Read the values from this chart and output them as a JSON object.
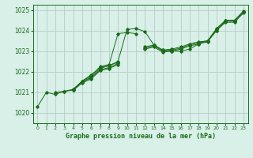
{
  "title": "Graphe pression niveau de la mer (hPa)",
  "background_color": "#d8f0e8",
  "grid_color": "#b8ccc8",
  "line_color": "#1a6b1a",
  "xlim": [
    -0.5,
    23.5
  ],
  "ylim": [
    1019.5,
    1025.25
  ],
  "yticks": [
    1020,
    1021,
    1022,
    1023,
    1024,
    1025
  ],
  "xticks": [
    0,
    1,
    2,
    3,
    4,
    5,
    6,
    7,
    8,
    9,
    10,
    11,
    12,
    13,
    14,
    15,
    16,
    17,
    18,
    19,
    20,
    21,
    22,
    23
  ],
  "series": [
    [
      1020.3,
      1021.0,
      1020.9,
      1021.05,
      1021.1,
      1021.55,
      1021.85,
      1022.2,
      1022.3,
      1022.5,
      1024.05,
      1024.1,
      1023.95,
      1023.3,
      1023.05,
      1023.0,
      1023.0,
      1023.1,
      1023.35,
      1023.5,
      1024.0,
      1024.5,
      1024.45,
      1024.9
    ],
    [
      null,
      null,
      1021.0,
      1021.05,
      1021.15,
      1021.55,
      1021.8,
      1022.25,
      1022.35,
      1023.85,
      1023.9,
      1023.85,
      null,
      null,
      null,
      null,
      null,
      null,
      null,
      null,
      null,
      null,
      null,
      null
    ],
    [
      null,
      null,
      null,
      null,
      1021.15,
      1021.5,
      1021.75,
      1022.15,
      1022.3,
      1022.45,
      null,
      null,
      1023.2,
      1023.3,
      1023.05,
      1023.1,
      1023.2,
      1023.35,
      1023.45,
      1023.5,
      1024.1,
      1024.5,
      1024.5,
      1024.95
    ],
    [
      null,
      null,
      null,
      null,
      1021.15,
      1021.5,
      1021.7,
      1022.1,
      1022.2,
      1022.4,
      null,
      null,
      1023.15,
      1023.25,
      1023.0,
      1023.05,
      1023.15,
      1023.3,
      1023.4,
      1023.5,
      1024.05,
      1024.45,
      1024.45,
      1024.9
    ],
    [
      null,
      null,
      null,
      null,
      1021.1,
      1021.45,
      1021.65,
      1022.05,
      1022.15,
      1022.35,
      null,
      null,
      1023.1,
      1023.2,
      1022.95,
      1023.0,
      1023.1,
      1023.25,
      1023.35,
      1023.45,
      1024.0,
      1024.4,
      1024.4,
      1024.85
    ]
  ],
  "xlabel_fontsize": 6.0,
  "ytick_fontsize": 5.5,
  "xtick_fontsize": 4.5
}
